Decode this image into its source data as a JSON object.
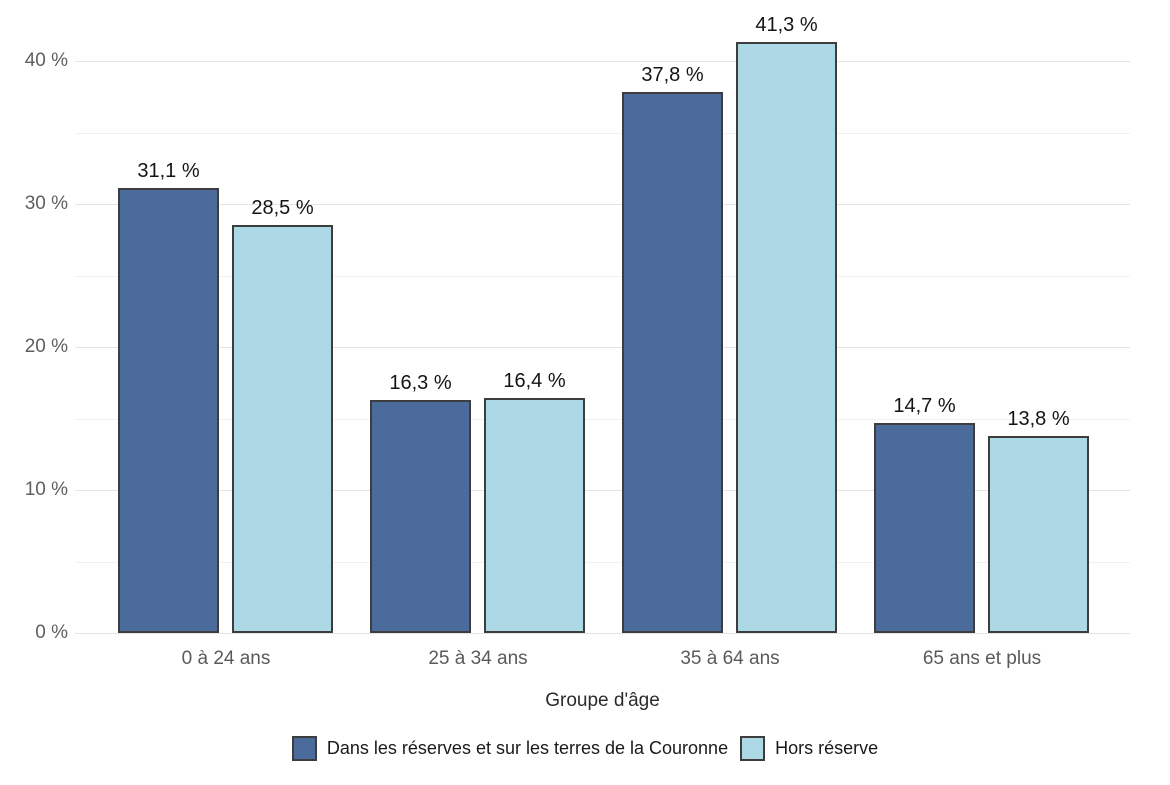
{
  "chart_data": {
    "type": "bar",
    "title": "",
    "xlabel": "Groupe d'âge",
    "ylabel": "",
    "categories": [
      "0 à 24 ans",
      "25 à 34 ans",
      "35 à 64 ans",
      "65 ans et plus"
    ],
    "series": [
      {
        "name": "Dans les réserves et sur les terres de la Couronne",
        "color": "#4a6b9b",
        "border_color": "#3d3d3d",
        "values": [
          31.1,
          16.3,
          37.8,
          14.7
        ],
        "value_labels": [
          "31,1 %",
          "16,3 %",
          "37,8 %",
          "14,7 %"
        ]
      },
      {
        "name": "Hors réserve",
        "color": "#add9e6",
        "border_color": "#3d3d3d",
        "values": [
          28.5,
          16.4,
          41.3,
          13.8
        ],
        "value_labels": [
          "28,5 %",
          "16,4 %",
          "41,3 %",
          "13,8 %"
        ]
      }
    ],
    "y_axis": {
      "range": [
        0,
        43
      ],
      "ticks": [
        {
          "value": 0,
          "label": "0 %"
        },
        {
          "value": 10,
          "label": "10 %"
        },
        {
          "value": 20,
          "label": "20 %"
        },
        {
          "value": 30,
          "label": "30 %"
        },
        {
          "value": 40,
          "label": "40 %"
        }
      ],
      "minor_gridlines": [
        5,
        15,
        25,
        35
      ]
    },
    "grid": true,
    "legend_position": "bottom"
  },
  "style_colors": {
    "background": "#ffffff",
    "major_gridline": "#e4e4e4",
    "minor_gridline": "#f1f1f1",
    "bar_border": "#3d3d3d",
    "tick_text": "#5f5f5f",
    "value_text": "#141414"
  }
}
